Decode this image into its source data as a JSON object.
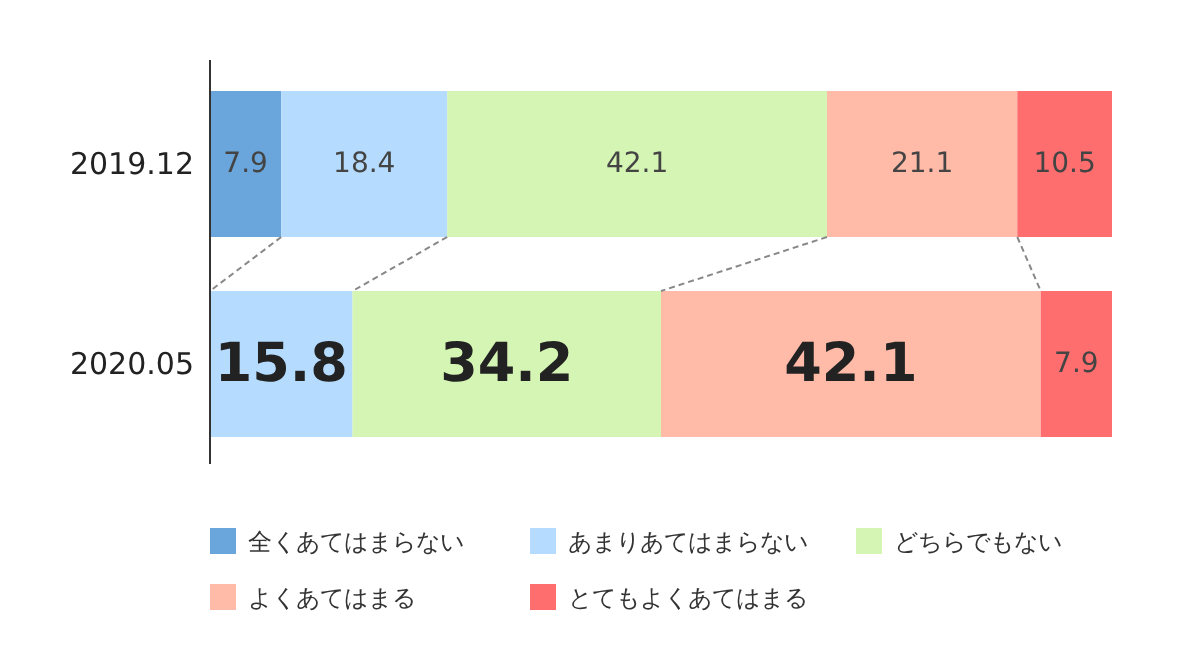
{
  "chart_data": {
    "type": "bar",
    "orientation": "horizontal",
    "stacked": true,
    "legend": "bottom",
    "xlim": [
      0,
      100
    ],
    "categories": [
      "2019.12",
      "2020.05"
    ],
    "series": [
      {
        "name": "全くあてはまらない",
        "color": "#6aa6dc",
        "values": [
          7.9,
          0
        ],
        "value_labels": [
          "7.9",
          null
        ]
      },
      {
        "name": "あまりあてはまらない",
        "color": "#b5dcff",
        "values": [
          18.4,
          15.8
        ],
        "value_labels": [
          "18.4",
          "15.8"
        ]
      },
      {
        "name": "どちらでもない",
        "color": "#d4f5b3",
        "values": [
          42.1,
          34.2
        ],
        "value_labels": [
          "42.1",
          "34.2"
        ]
      },
      {
        "name": "よくあてはまる",
        "color": "#ffbaa8",
        "values": [
          21.1,
          42.1
        ],
        "value_labels": [
          "21.1",
          "42.1"
        ]
      },
      {
        "name": "とてもよくあてはまる",
        "color": "#ff6e6e",
        "values": [
          10.5,
          7.9
        ],
        "value_labels": [
          "10.5",
          "7.9"
        ]
      }
    ]
  }
}
